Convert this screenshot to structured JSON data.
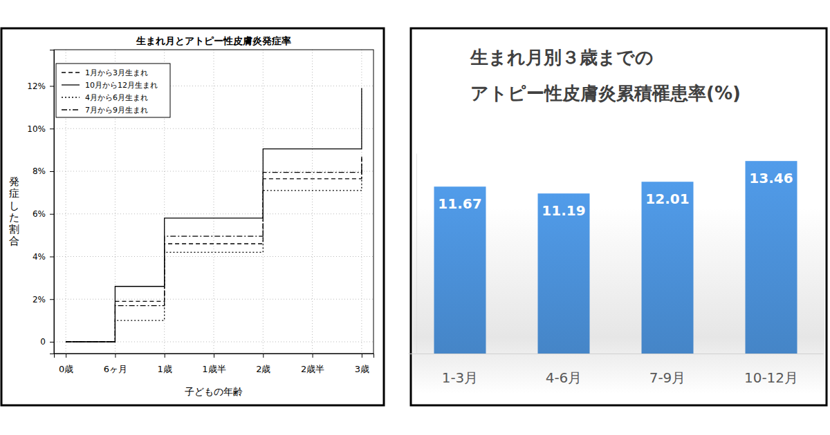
{
  "chart_data": [
    {
      "type": "step",
      "title": "生まれ月とアトピー性皮膚炎発症率",
      "xlabel": "子どもの年齢",
      "ylabel": "発症した割合",
      "x": [
        0,
        0.5,
        1,
        2,
        3
      ],
      "series": [
        {
          "name": "1月から3月生まれ",
          "color": "#000000",
          "line_style": "dashed",
          "values": [
            0,
            1.9,
            4.6,
            7.65,
            8.7
          ]
        },
        {
          "name": "10月から12月生まれ",
          "color": "#000000",
          "line_style": "solid",
          "values": [
            0,
            2.6,
            5.8,
            9.05,
            11.9
          ]
        },
        {
          "name": "4月から6月生まれ",
          "color": "#000000",
          "line_style": "dotted",
          "values": [
            0,
            1.0,
            4.2,
            7.1,
            8.2
          ]
        },
        {
          "name": "7月から9月生まれ",
          "color": "#000000",
          "line_style": "dashdot",
          "values": [
            0,
            1.7,
            4.95,
            7.95,
            8.6
          ]
        }
      ],
      "xlim": [
        -0.12,
        3.12
      ],
      "ylim": [
        -0.55,
        13.7
      ],
      "xticks": [
        {
          "value": 0,
          "label": "0歳"
        },
        {
          "value": 0.5,
          "label": "6ヶ月"
        },
        {
          "value": 1,
          "label": "1歳"
        },
        {
          "value": 1.5,
          "label": "1歳半"
        },
        {
          "value": 2,
          "label": "2歳"
        },
        {
          "value": 2.5,
          "label": "2歳半"
        },
        {
          "value": 3,
          "label": "3歳"
        }
      ],
      "yticks": [
        0,
        {
          "value": 2,
          "label": "2%"
        },
        {
          "value": 4,
          "label": "4%"
        },
        {
          "value": 6,
          "label": "6%"
        },
        {
          "value": 8,
          "label": "8%"
        },
        {
          "value": 10,
          "label": "10%"
        },
        {
          "value": 12,
          "label": "12%"
        }
      ],
      "grid": true,
      "legend": "upper left"
    },
    {
      "type": "bar",
      "title": "生まれ月別３歳までの\nアトピー性皮膚炎累積罹患率(%)",
      "categories": [
        "1-3月",
        "4-6月",
        "7-9月",
        "10-12月"
      ],
      "values": [
        11.67,
        11.19,
        12.01,
        13.46
      ],
      "color": "#4a8fd6",
      "ylim": [
        0,
        14
      ],
      "data_labels": true,
      "tick_labels": "x"
    }
  ]
}
